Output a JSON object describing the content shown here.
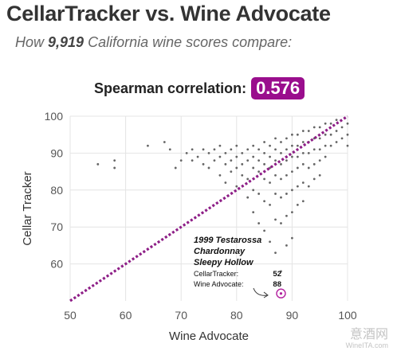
{
  "header": {
    "title": "CellarTracker vs. Wine Advocate",
    "subtitle_prefix": "How ",
    "subtitle_count": "9,919",
    "subtitle_suffix": " California wine scores compare:"
  },
  "correlation": {
    "label": "Spearman correlation:",
    "value": "0.576",
    "badge_color": "#9a0e8d"
  },
  "annotation": {
    "line1": "1999 Testarossa",
    "line2": "Chardonnay",
    "line3": "Sleepy Hollow",
    "ct_label": "CellarTracker:",
    "ct_value": "52",
    "wa_label": "Wine Advocate:",
    "wa_value": "88"
  },
  "watermark": {
    "cn": "意酒网",
    "en": "WineITA.com"
  },
  "chart_data": {
    "type": "scatter",
    "xlabel": "Wine Advocate",
    "ylabel": "Cellar Tracker",
    "xlim": [
      50,
      100
    ],
    "ylim": [
      50,
      100
    ],
    "xticks": [
      50,
      60,
      70,
      80,
      90,
      100
    ],
    "yticks": [
      60,
      70,
      80,
      90,
      100
    ],
    "grid": true,
    "point_color": "#666666",
    "reference_line": {
      "from": [
        50,
        50
      ],
      "to": [
        100,
        100
      ],
      "color": "#8e1f87",
      "style": "dotted"
    },
    "highlight": {
      "x": 88,
      "y": 52,
      "color": "#b3209f"
    },
    "points": [
      [
        55,
        87
      ],
      [
        58,
        88
      ],
      [
        58,
        86
      ],
      [
        64,
        92
      ],
      [
        67,
        93
      ],
      [
        68,
        91
      ],
      [
        69,
        86
      ],
      [
        70,
        88
      ],
      [
        71,
        90
      ],
      [
        72,
        91
      ],
      [
        72,
        88
      ],
      [
        73,
        89
      ],
      [
        74,
        91
      ],
      [
        74,
        87
      ],
      [
        75,
        90
      ],
      [
        75,
        86
      ],
      [
        76,
        91
      ],
      [
        76,
        88
      ],
      [
        77,
        92
      ],
      [
        77,
        89
      ],
      [
        77,
        84
      ],
      [
        78,
        90
      ],
      [
        78,
        87
      ],
      [
        78,
        82
      ],
      [
        79,
        91
      ],
      [
        79,
        88
      ],
      [
        79,
        85
      ],
      [
        80,
        92
      ],
      [
        80,
        89
      ],
      [
        80,
        86
      ],
      [
        80,
        81
      ],
      [
        81,
        90
      ],
      [
        81,
        87
      ],
      [
        81,
        84
      ],
      [
        82,
        91
      ],
      [
        82,
        88
      ],
      [
        82,
        83
      ],
      [
        82,
        78
      ],
      [
        83,
        92
      ],
      [
        83,
        89
      ],
      [
        83,
        86
      ],
      [
        83,
        80
      ],
      [
        83,
        74
      ],
      [
        84,
        91
      ],
      [
        84,
        88
      ],
      [
        84,
        85
      ],
      [
        84,
        79
      ],
      [
        84,
        71
      ],
      [
        85,
        93
      ],
      [
        85,
        90
      ],
      [
        85,
        87
      ],
      [
        85,
        83
      ],
      [
        85,
        77
      ],
      [
        85,
        69
      ],
      [
        86,
        92
      ],
      [
        86,
        89
      ],
      [
        86,
        86
      ],
      [
        86,
        82
      ],
      [
        86,
        76
      ],
      [
        86,
        66
      ],
      [
        87,
        94
      ],
      [
        87,
        91
      ],
      [
        87,
        88
      ],
      [
        87,
        84
      ],
      [
        87,
        79
      ],
      [
        87,
        72
      ],
      [
        87,
        63
      ],
      [
        88,
        93
      ],
      [
        88,
        90
      ],
      [
        88,
        87
      ],
      [
        88,
        83
      ],
      [
        88,
        78
      ],
      [
        88,
        71
      ],
      [
        88,
        58
      ],
      [
        88,
        52
      ],
      [
        89,
        94
      ],
      [
        89,
        91
      ],
      [
        89,
        88
      ],
      [
        89,
        84
      ],
      [
        89,
        79
      ],
      [
        89,
        73
      ],
      [
        89,
        65
      ],
      [
        90,
        95
      ],
      [
        90,
        92
      ],
      [
        90,
        89
      ],
      [
        90,
        85
      ],
      [
        90,
        80
      ],
      [
        90,
        74
      ],
      [
        90,
        67
      ],
      [
        91,
        95
      ],
      [
        91,
        92
      ],
      [
        91,
        89
      ],
      [
        91,
        86
      ],
      [
        91,
        81
      ],
      [
        91,
        76
      ],
      [
        92,
        96
      ],
      [
        92,
        93
      ],
      [
        92,
        90
      ],
      [
        92,
        87
      ],
      [
        92,
        82
      ],
      [
        92,
        77
      ],
      [
        93,
        96
      ],
      [
        93,
        93
      ],
      [
        93,
        90
      ],
      [
        93,
        86
      ],
      [
        93,
        81
      ],
      [
        94,
        97
      ],
      [
        94,
        94
      ],
      [
        94,
        91
      ],
      [
        94,
        87
      ],
      [
        94,
        83
      ],
      [
        95,
        97
      ],
      [
        95,
        94
      ],
      [
        95,
        91
      ],
      [
        95,
        88
      ],
      [
        95,
        84
      ],
      [
        96,
        98
      ],
      [
        96,
        95
      ],
      [
        96,
        92
      ],
      [
        96,
        89
      ],
      [
        97,
        98
      ],
      [
        97,
        95
      ],
      [
        97,
        92
      ],
      [
        98,
        99
      ],
      [
        98,
        96
      ],
      [
        98,
        93
      ],
      [
        99,
        97
      ],
      [
        99,
        94
      ],
      [
        100,
        98
      ],
      [
        100,
        95
      ],
      [
        100,
        92
      ]
    ]
  }
}
